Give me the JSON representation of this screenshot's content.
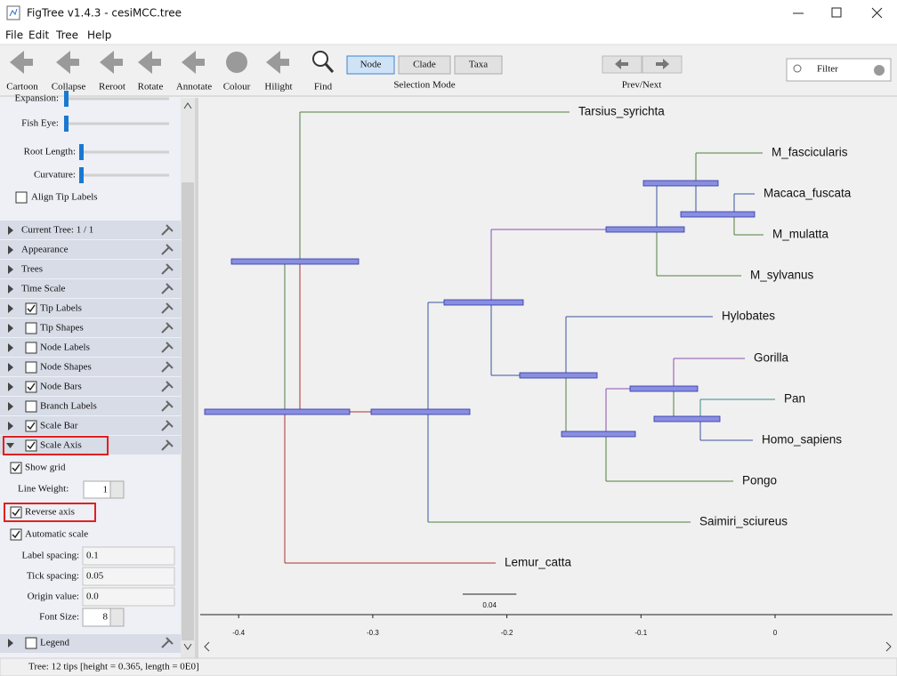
{
  "window": {
    "title": "FigTree v1.4.3 - cesiMCC.tree"
  },
  "menu": [
    "File",
    "Edit",
    "Tree",
    "Help"
  ],
  "toolbar": {
    "tools": [
      "Cartoon",
      "Collapse",
      "Reroot",
      "Rotate",
      "Annotate",
      "Colour",
      "Hilight",
      "Find"
    ],
    "selection_modes": [
      {
        "label": "Node",
        "selected": true
      },
      {
        "label": "Clade"
      },
      {
        "label": "Taxa"
      }
    ],
    "selection_label": "Selection Mode",
    "nav_label": "Prev/Next",
    "filter_placeholder": "Filter"
  },
  "panel": {
    "sliders": [
      "Expansion:",
      "Fish Eye:",
      "Root Length:",
      "Curvature:"
    ],
    "align_tip_labels": {
      "label": "Align Tip Labels",
      "checked": false
    },
    "sections": [
      {
        "label": "Current Tree: 1 / 1"
      },
      {
        "label": "Appearance"
      },
      {
        "label": "Trees"
      },
      {
        "label": "Time Scale"
      },
      {
        "label": "Tip Labels",
        "checked": true
      },
      {
        "label": "Tip Shapes",
        "checked": false
      },
      {
        "label": "Node Labels",
        "checked": false
      },
      {
        "label": "Node Shapes",
        "checked": false
      },
      {
        "label": "Node Bars",
        "checked": true
      },
      {
        "label": "Branch Labels",
        "checked": false
      },
      {
        "label": "Scale Bar",
        "checked": true
      },
      {
        "label": "Scale Axis",
        "checked": true,
        "expanded": true
      }
    ],
    "scale_axis": {
      "show_grid": {
        "label": "Show grid",
        "checked": true
      },
      "line_weight": {
        "label": "Line Weight:",
        "value": 1
      },
      "reverse_axis": {
        "label": "Reverse axis",
        "checked": true
      },
      "automatic_scale": {
        "label": "Automatic scale",
        "checked": true
      },
      "fields": [
        {
          "label": "Label spacing:",
          "value": "0.1"
        },
        {
          "label": "Tick spacing:",
          "value": "0.05"
        },
        {
          "label": "Origin value:",
          "value": "0.0"
        }
      ],
      "font_size": {
        "label": "Font Size:",
        "value": 8
      }
    },
    "legend": {
      "label": "Legend",
      "checked": false
    }
  },
  "tree": {
    "tips": [
      "Tarsius_syrichta",
      "M_fascicularis",
      "Macaca_fuscata",
      "M_mulatta",
      "M_sylvanus",
      "Hylobates",
      "Gorilla",
      "Pan",
      "Homo_sapiens",
      "Pongo",
      "Saimiri_sciureus",
      "Lemur_catta"
    ],
    "axis_ticks": [
      -0.4,
      -0.3,
      -0.2,
      -0.1,
      0
    ],
    "scale_bar": 0.04
  },
  "status": "Tree: 12 tips [height = 0.365, length = 0E0]"
}
